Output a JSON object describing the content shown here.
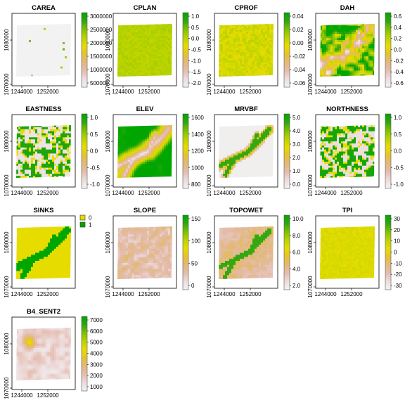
{
  "figure": {
    "x_ticks": [
      "1244000",
      "1252000"
    ],
    "y_ticks": [
      "1070000",
      "1080000"
    ]
  },
  "palette": {
    "stops": [
      "#f2f2f2",
      "#eddcdc",
      "#e4bcae",
      "#e2b97a",
      "#e6c22f",
      "#e6dc00",
      "#b9d300",
      "#7cc100",
      "#2fa612",
      "#00a600"
    ],
    "nodata": "#f3f3f3"
  },
  "panels": [
    {
      "title": "CAREA",
      "legend": {
        "type": "continuous",
        "ticks": [
          "3000000",
          "2500000",
          "2000000",
          "1500000",
          "1000000",
          "500000"
        ]
      }
    },
    {
      "title": "CPLAN",
      "legend": {
        "type": "continuous",
        "ticks": [
          "1.0",
          "0.5",
          "0.0",
          "-0.5",
          "-1.0",
          "-1.5",
          "-2.0"
        ]
      }
    },
    {
      "title": "CPROF",
      "legend": {
        "type": "continuous",
        "ticks": [
          "0.04",
          "0.02",
          "0.00",
          "-0.02",
          "-0.04",
          "-0.06"
        ]
      }
    },
    {
      "title": "DAH",
      "legend": {
        "type": "continuous",
        "ticks": [
          "0.6",
          "0.4",
          "0.2",
          "0.0",
          "-0.2",
          "-0.4",
          "-0.6"
        ]
      }
    },
    {
      "title": "EASTNESS",
      "legend": {
        "type": "continuous",
        "ticks": [
          "1.0",
          "0.5",
          "0.0",
          "-0.5",
          "-1.0"
        ]
      }
    },
    {
      "title": "ELEV",
      "legend": {
        "type": "continuous",
        "ticks": [
          "1600",
          "1400",
          "1200",
          "1000",
          "800"
        ]
      }
    },
    {
      "title": "MRVBF",
      "legend": {
        "type": "continuous",
        "ticks": [
          "5.0",
          "4.0",
          "3.0",
          "2.0",
          "1.0",
          "0.0"
        ]
      }
    },
    {
      "title": "NORTHNESS",
      "legend": {
        "type": "continuous",
        "ticks": [
          "1.0",
          "0.5",
          "0.0",
          "-0.5",
          "-1.0"
        ]
      }
    },
    {
      "title": "SINKS",
      "legend": {
        "type": "categorical",
        "items": [
          {
            "label": "0",
            "color": "#e6dc00"
          },
          {
            "label": "1",
            "color": "#00a600"
          }
        ]
      }
    },
    {
      "title": "SLOPE",
      "legend": {
        "type": "continuous",
        "ticks": [
          "150",
          "100",
          "50",
          "0"
        ]
      }
    },
    {
      "title": "TOPOWET",
      "legend": {
        "type": "continuous",
        "ticks": [
          "10.0",
          "8.0",
          "6.0",
          "4.0",
          "2.0"
        ]
      }
    },
    {
      "title": "TPI",
      "legend": {
        "type": "continuous",
        "ticks": [
          "30",
          "20",
          "10",
          "0",
          "-10",
          "-20",
          "-30"
        ]
      }
    },
    {
      "title": "B4_SENT2",
      "legend": {
        "type": "continuous",
        "ticks": [
          "7000",
          "6000",
          "5000",
          "4000",
          "3000",
          "2000",
          "1000"
        ]
      }
    }
  ],
  "chart_data": {
    "type": "heatmap",
    "panels": [
      {
        "title": "CAREA",
        "value_range": [
          0,
          3000000
        ],
        "pattern": "near-zero with sparse high-accumulation cells"
      },
      {
        "title": "CPLAN",
        "value_range": [
          -2.2,
          1.2
        ],
        "pattern": "uniform near 0"
      },
      {
        "title": "CPROF",
        "value_range": [
          -0.065,
          0.045
        ],
        "pattern": "uniform near 0 with noise"
      },
      {
        "title": "DAH",
        "value_range": [
          -0.7,
          0.7
        ],
        "pattern": "ridges positive, valleys negative"
      },
      {
        "title": "EASTNESS",
        "value_range": [
          -1,
          1
        ],
        "pattern": "aspect-driven mosaic"
      },
      {
        "title": "ELEV",
        "value_range": [
          700,
          1700
        ],
        "pattern": "high plateaus, low valleys"
      },
      {
        "title": "MRVBF",
        "value_range": [
          0,
          5.8
        ],
        "pattern": "high along valley bottoms"
      },
      {
        "title": "NORTHNESS",
        "value_range": [
          -1,
          1
        ],
        "pattern": "aspect-driven mosaic"
      },
      {
        "title": "SINKS",
        "value_range": [
          0,
          1
        ],
        "pattern": "class 1 along valleys, class 0 elsewhere"
      },
      {
        "title": "SLOPE",
        "value_range": [
          0,
          180
        ],
        "pattern": "mostly low with steeper valley walls"
      },
      {
        "title": "TOPOWET",
        "value_range": [
          1.5,
          11
        ],
        "pattern": "wet along drainage lines"
      },
      {
        "title": "TPI",
        "value_range": [
          -33,
          33
        ],
        "pattern": "near 0 overall"
      },
      {
        "title": "B4_SENT2",
        "value_range": [
          0,
          7500
        ],
        "pattern": "low overall with bright patches upper-left"
      }
    ]
  }
}
